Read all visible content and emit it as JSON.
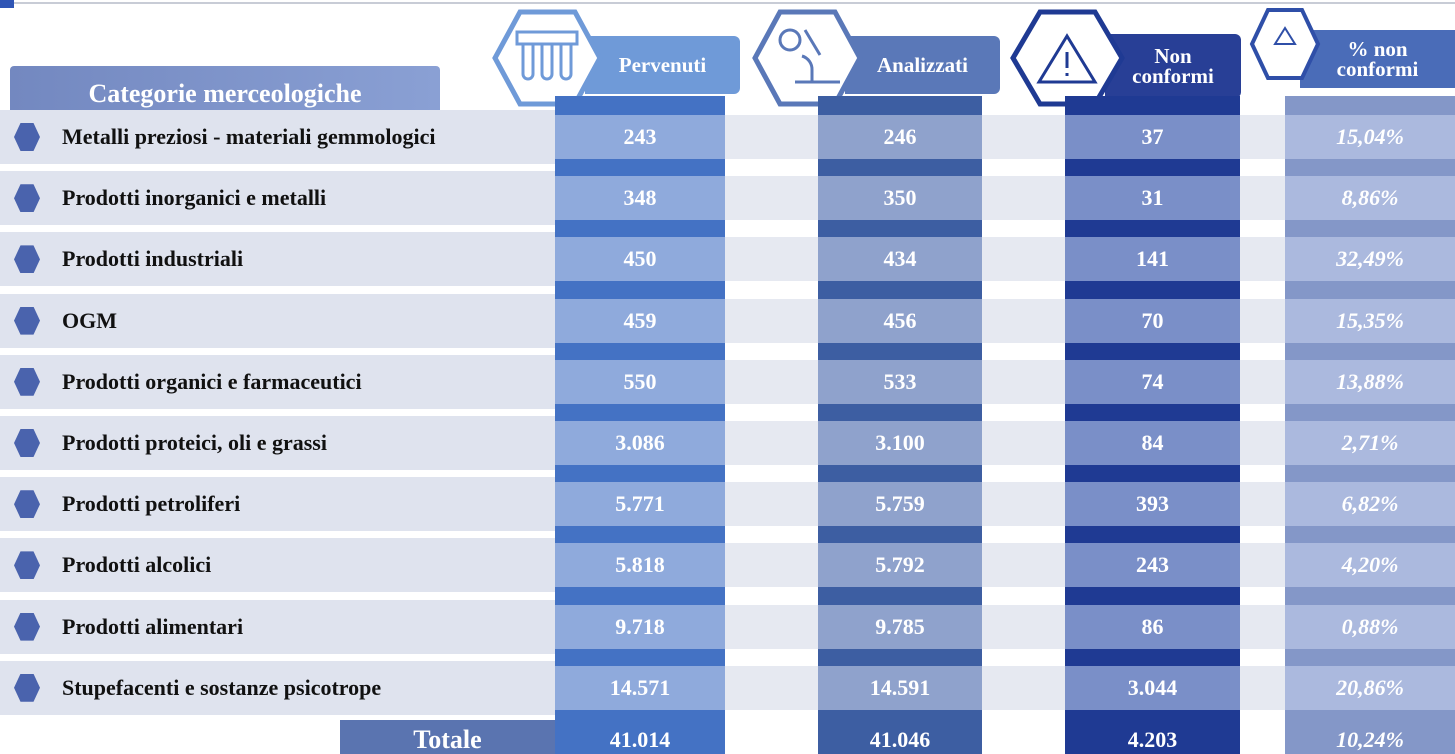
{
  "table": {
    "columns": [
      "Categorie merceologiche",
      "Pervenuti",
      "Analizzati",
      "Non conformi",
      "% non conformi"
    ],
    "rows": [
      [
        "Metalli preziosi - materiali gemmologici",
        "243",
        "246",
        "37",
        "15,04%"
      ],
      [
        "Prodotti inorganici e metalli",
        "348",
        "350",
        "31",
        "8,86%"
      ],
      [
        "Prodotti industriali",
        "450",
        "434",
        "141",
        "32,49%"
      ],
      [
        "OGM",
        "459",
        "456",
        "70",
        "15,35%"
      ],
      [
        "Prodotti organici e farmaceutici",
        "550",
        "533",
        "74",
        "13,88%"
      ],
      [
        "Prodotti proteici, oli e grassi",
        "3.086",
        "3.100",
        "84",
        "2,71%"
      ],
      [
        "Prodotti petroliferi",
        "5.771",
        "5.759",
        "393",
        "6,82%"
      ],
      [
        "Prodotti alcolici",
        "5.818",
        "5.792",
        "243",
        "4,20%"
      ],
      [
        "Prodotti alimentari",
        "9.718",
        "9.785",
        "86",
        "0,88%"
      ],
      [
        "Stupefacenti e sostanze psicotrope",
        "14.571",
        "14.591",
        "3.044",
        "20,86%"
      ]
    ],
    "total": [
      "Totale",
      "41.014",
      "41.046",
      "4.203",
      "10,24%"
    ]
  }
}
